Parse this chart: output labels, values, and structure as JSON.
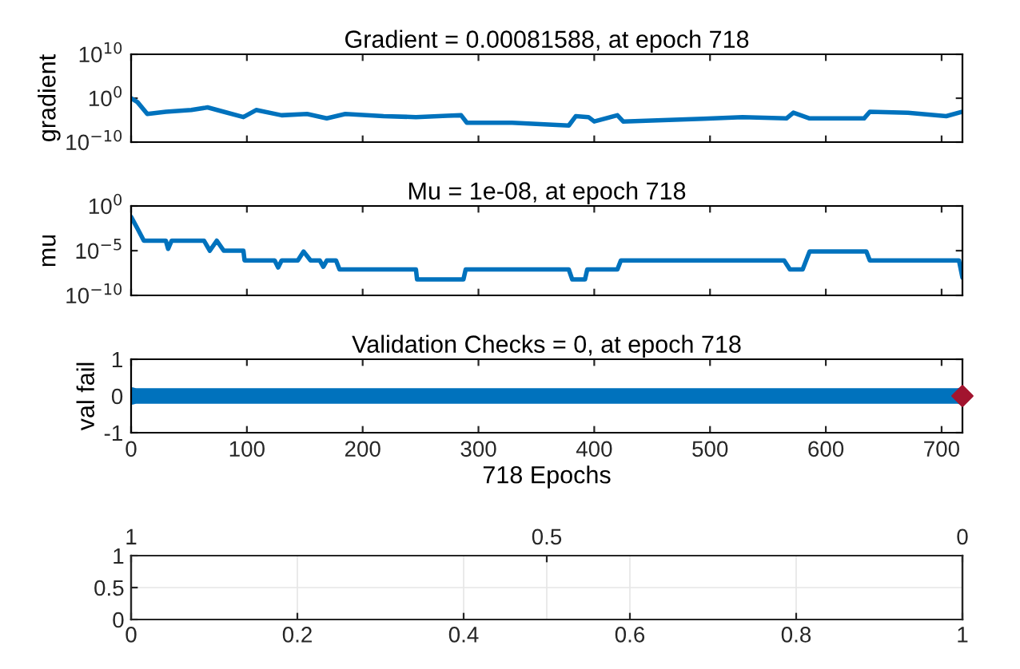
{
  "chart_data": [
    {
      "type": "line",
      "title": "Gradient = 0.00081588, at epoch 718",
      "ylabel": "gradient",
      "log": true,
      "tick_labels": "y",
      "xlim": [
        0,
        718
      ],
      "xticks": [
        {
          "value": 0,
          "label": null
        },
        {
          "value": 100,
          "label": null
        },
        {
          "value": 200,
          "label": null
        },
        {
          "value": 300,
          "label": null
        },
        {
          "value": 400,
          "label": null
        },
        {
          "value": 500,
          "label": null
        },
        {
          "value": 600,
          "label": null
        },
        {
          "value": 700,
          "label": null
        }
      ],
      "ylim": [
        1e-10,
        10000000000.0
      ],
      "yticks": [
        {
          "value": 1e-10,
          "label": "10$^{−10}$"
        },
        {
          "value": 1,
          "label": "10$^{0}$"
        },
        {
          "value": 10000000000.0,
          "label": "10$^{10}$"
        }
      ],
      "series": [
        {
          "color": "#0072bd",
          "x": [
            0,
            5.5,
            14,
            30,
            52,
            66,
            80,
            97,
            108,
            130,
            152,
            169,
            185,
            218,
            246,
            273,
            285,
            290,
            329,
            378,
            384,
            395,
            400,
            420,
            425,
            494,
            528,
            566,
            572,
            586,
            633,
            638,
            671,
            704,
            718
          ],
          "values": [
            1,
            0.13,
            0.00025,
            0.0008,
            0.002,
            0.008,
            0.0008,
            5e-05,
            0.002,
            0.00013,
            0.00025,
            2.5e-05,
            0.00025,
            8e-05,
            5e-05,
            0.0001,
            0.00013,
            2.5e-06,
            2.5e-06,
            6e-07,
            8e-05,
            5e-05,
            5e-06,
            0.00013,
            5e-06,
            2e-05,
            5e-05,
            2.5e-05,
            0.0005,
            2.5e-05,
            2.5e-05,
            0.0008,
            0.0005,
            8e-05,
            0.00082
          ]
        }
      ]
    },
    {
      "type": "line",
      "title": "Mu = 1e-08, at epoch 718",
      "ylabel": "mu",
      "log": true,
      "tick_labels": "y",
      "xlim": [
        0,
        718
      ],
      "xticks": [
        {
          "value": 0,
          "label": null
        },
        {
          "value": 100,
          "label": null
        },
        {
          "value": 200,
          "label": null
        },
        {
          "value": 300,
          "label": null
        },
        {
          "value": 400,
          "label": null
        },
        {
          "value": 500,
          "label": null
        },
        {
          "value": 600,
          "label": null
        },
        {
          "value": 700,
          "label": null
        }
      ],
      "ylim": [
        1e-10,
        1
      ],
      "yticks": [
        {
          "value": 1e-10,
          "label": "10$^{−10}$"
        },
        {
          "value": 1e-05,
          "label": "10$^{−5}$"
        },
        {
          "value": 1,
          "label": "10$^{0}$"
        }
      ],
      "series": [
        {
          "color": "#0072bd",
          "x": [
            0,
            5.5,
            11,
            30,
            32,
            35,
            63,
            68,
            74,
            80,
            97,
            98,
            124,
            127,
            130,
            144,
            149,
            155,
            163,
            166,
            169,
            177,
            180,
            246,
            247,
            287,
            289,
            378,
            381,
            392,
            394,
            420,
            423,
            564,
            569,
            580,
            586,
            635,
            638,
            715,
            718
          ],
          "values": [
            0.06,
            0.003,
            0.00013,
            0.00013,
            1.6e-05,
            0.00013,
            0.00013,
            1e-05,
            0.00013,
            1e-05,
            1e-05,
            8e-07,
            8e-07,
            1.3e-07,
            8e-07,
            8e-07,
            8e-06,
            8e-07,
            8e-07,
            1.6e-07,
            8e-07,
            8e-07,
            8e-08,
            8e-08,
            6e-09,
            6e-09,
            8e-08,
            8e-08,
            6e-09,
            6e-09,
            8e-08,
            8e-08,
            8e-07,
            8e-07,
            8e-08,
            8e-08,
            8e-06,
            8e-06,
            8e-07,
            8e-07,
            1e-08
          ]
        }
      ]
    },
    {
      "type": "line",
      "title": "Validation Checks = 0, at epoch 718",
      "ylabel": "val fail",
      "xlabel": "718 Epochs",
      "xlim": [
        0,
        718
      ],
      "xticks": [
        0,
        100,
        200,
        300,
        400,
        500,
        600,
        700
      ],
      "ylim": [
        -1,
        1
      ],
      "yticks": [
        -1,
        0,
        1
      ],
      "series": [
        {
          "color": "#0072bd",
          "x": [
            0,
            718
          ],
          "values": [
            0,
            0
          ],
          "marker": "circle"
        },
        {
          "type": "scatter",
          "color": "#a2142f",
          "x": [
            718
          ],
          "values": [
            0
          ],
          "marker": "diamond"
        }
      ]
    },
    {
      "type": "line",
      "grid": true,
      "xlim": [
        0,
        1
      ],
      "xticks": [
        0,
        0.2,
        0.4,
        0.6,
        0.8,
        1
      ],
      "ylim": [
        0,
        1
      ],
      "yticks": [
        0,
        0.5,
        1
      ],
      "x2lim": [
        1,
        0
      ],
      "x2ticks": [
        0,
        0.5,
        1
      ]
    }
  ]
}
